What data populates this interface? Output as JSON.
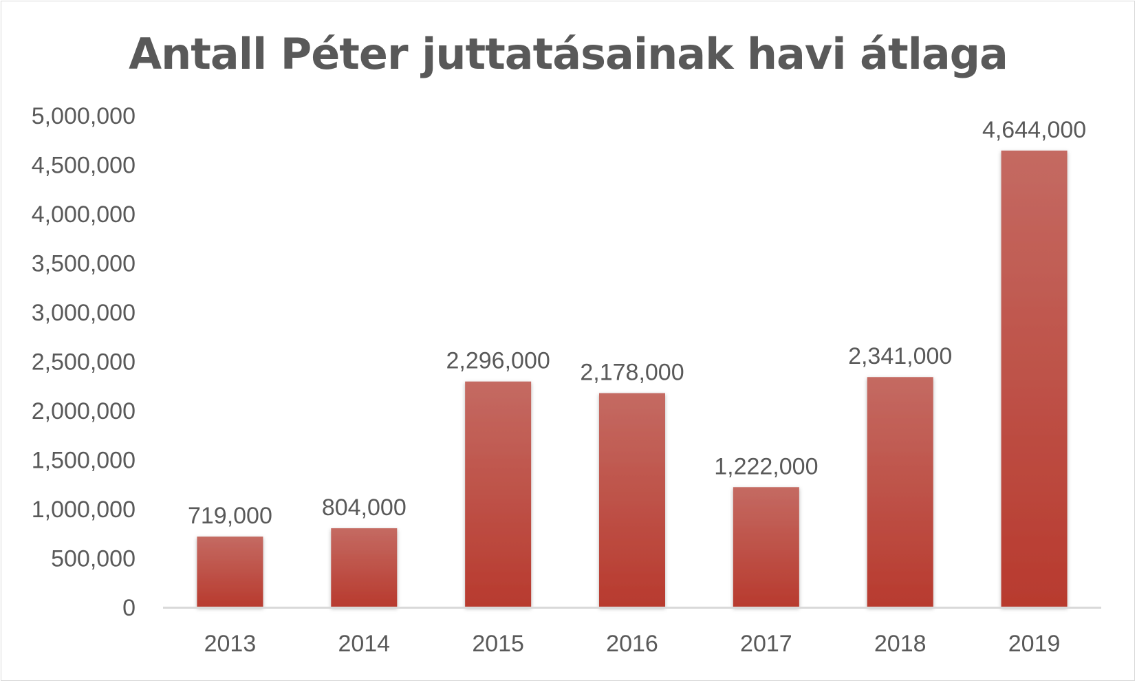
{
  "chart_data": {
    "type": "bar",
    "title": "Antall Péter juttatásainak havi átlaga",
    "categories": [
      "2013",
      "2014",
      "2015",
      "2016",
      "2017",
      "2018",
      "2019"
    ],
    "values": [
      719000,
      804000,
      2296000,
      2178000,
      1222000,
      2341000,
      4644000
    ],
    "data_labels": [
      "719,000",
      "804,000",
      "2,296,000",
      "2,178,000",
      "1,222,000",
      "2,341,000",
      "4,644,000"
    ],
    "y_ticks": [
      0,
      500000,
      1000000,
      1500000,
      2000000,
      2500000,
      3000000,
      3500000,
      4000000,
      4500000,
      5000000
    ],
    "y_tick_labels": [
      "0",
      "500,000",
      "1,000,000",
      "1,500,000",
      "2,000,000",
      "2,500,000",
      "3,000,000",
      "3,500,000",
      "4,000,000",
      "4,500,000",
      "5,000,000"
    ],
    "ylim": [
      0,
      5000000
    ],
    "xlabel": "",
    "ylabel": "",
    "grid": false,
    "legend": "none",
    "colors": {
      "bar_top": "#c46a62",
      "bar_bottom": "#b83a2e",
      "axis": "#d9d9d9",
      "text": "#595959"
    }
  }
}
